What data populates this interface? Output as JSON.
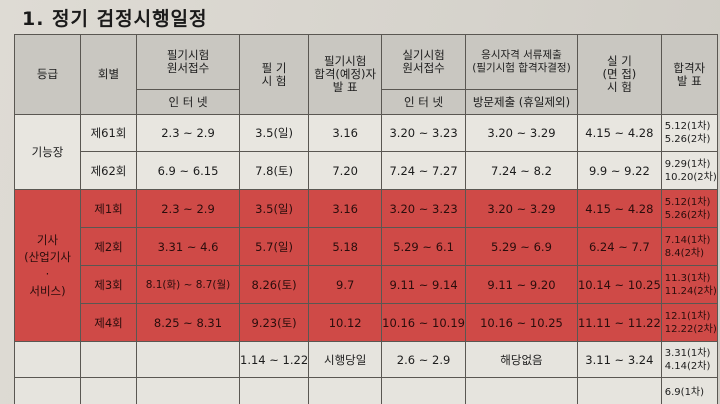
{
  "title": "1. 정기 검정시행일정",
  "headers": {
    "grade": "등급",
    "session": "회별",
    "written_apply": "필기시험\n원서접수",
    "written_apply_sub": "인 터 넷",
    "written_exam": "필 기\n시 험",
    "written_pass": "필기시험\n합격(예정)자\n발 표",
    "practical_apply": "실기시험\n원서접수",
    "practical_apply_sub": "인 터 넷",
    "docs": "응시자격 서류제출\n(필기시험 합격자결정)",
    "docs_sub": "방문제출 (휴일제외)",
    "practical_exam": "실 기\n(면 접)\n시 험",
    "final_pass": "합격자\n발 표"
  },
  "groups": [
    {
      "grade": "기능장",
      "rows": [
        {
          "session": "제61회",
          "written_apply": "2.3 ~ 2.9",
          "written_exam": "3.5(일)",
          "written_pass": "3.16",
          "practical_apply": "3.20 ~ 3.23",
          "docs": "3.20 ~ 3.29",
          "practical_exam": "4.15 ~ 4.28",
          "final_pass_1": "5.12(1차)",
          "final_pass_2": "5.26(2차)"
        },
        {
          "session": "제62회",
          "written_apply": "6.9 ~ 6.15",
          "written_exam": "7.8(토)",
          "written_pass": "7.20",
          "practical_apply": "7.24 ~ 7.27",
          "docs": "7.24 ~ 8.2",
          "practical_exam": "9.9 ~ 9.22",
          "final_pass_1": "9.29(1차)",
          "final_pass_2": "10.20(2차)"
        }
      ]
    },
    {
      "grade": "기사\n(산업기사\n·\n서비스)",
      "rows": [
        {
          "session": "제1회",
          "written_apply": "2.3 ~ 2.9",
          "written_exam": "3.5(일)",
          "written_pass": "3.16",
          "practical_apply": "3.20 ~ 3.23",
          "docs": "3.20 ~ 3.29",
          "practical_exam": "4.15 ~ 4.28",
          "final_pass_1": "5.12(1차)",
          "final_pass_2": "5.26(2차)"
        },
        {
          "session": "제2회",
          "written_apply": "3.31 ~ 4.6",
          "written_exam": "5.7(일)",
          "written_pass": "5.18",
          "practical_apply": "5.29 ~ 6.1",
          "docs": "5.29 ~ 6.9",
          "practical_exam": "6.24 ~ 7.7",
          "final_pass_1": "7.14(1차)",
          "final_pass_2": "8.4(2차)"
        },
        {
          "session": "제3회",
          "written_apply": "8.1(화) ~ 8.7(월)",
          "written_exam": "8.26(토)",
          "written_pass": "9.7",
          "practical_apply": "9.11 ~ 9.14",
          "docs": "9.11 ~ 9.20",
          "practical_exam": "10.14 ~ 10.25",
          "final_pass_1": "11.3(1차)",
          "final_pass_2": "11.24(2차)"
        },
        {
          "session": "제4회",
          "written_apply": "8.25 ~ 8.31",
          "written_exam": "9.23(토)",
          "written_pass": "10.12",
          "practical_apply": "10.16 ~ 10.19",
          "docs": "10.16 ~ 10.25",
          "practical_exam": "11.11 ~ 11.22",
          "final_pass_1": "12.1(1차)",
          "final_pass_2": "12.22(2차)"
        }
      ]
    }
  ],
  "bottom_row": {
    "written_exam": "1.14 ~ 1.22",
    "written_pass": "시행당일",
    "practical_apply": "2.6 ~ 2.9",
    "docs": "해당없음",
    "practical_exam": "3.11 ~ 3.24",
    "final_pass_1": "3.31(1차)",
    "final_pass_2": "4.14(2차)",
    "final_pass_next": "6.9(1차)"
  },
  "colors": {
    "highlight": "#cf4a47",
    "header": "#c9c7c1",
    "paper": "#e8e6e0"
  }
}
